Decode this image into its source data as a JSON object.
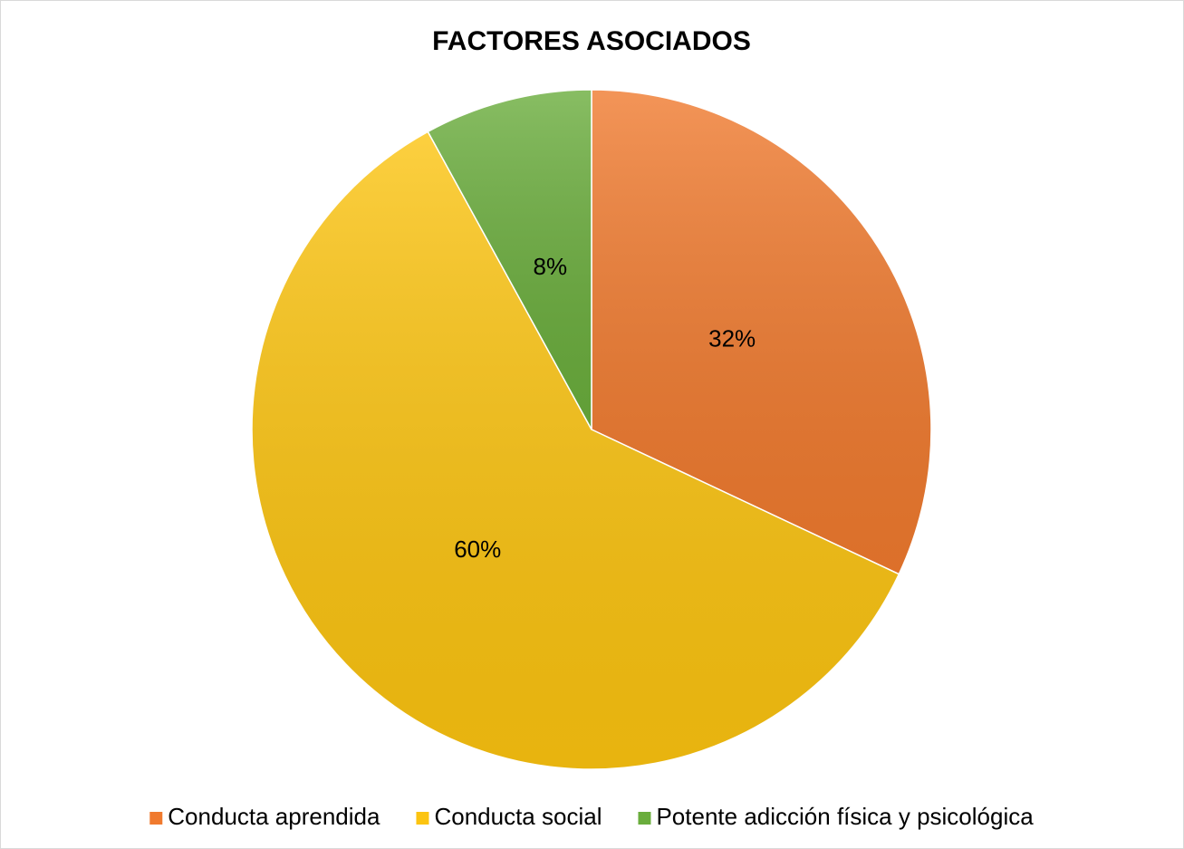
{
  "chart_data": {
    "type": "pie",
    "title": "FACTORES ASOCIADOS",
    "categories": [
      "Conducta aprendida",
      "Conducta social",
      "Potente adicción física y psicológica"
    ],
    "values": [
      32,
      60,
      8
    ],
    "value_labels": [
      "32%",
      "60%",
      "8%"
    ],
    "colors": [
      "#f07a2e",
      "#fcc410",
      "#6aad3c"
    ],
    "legend": "bottom"
  }
}
